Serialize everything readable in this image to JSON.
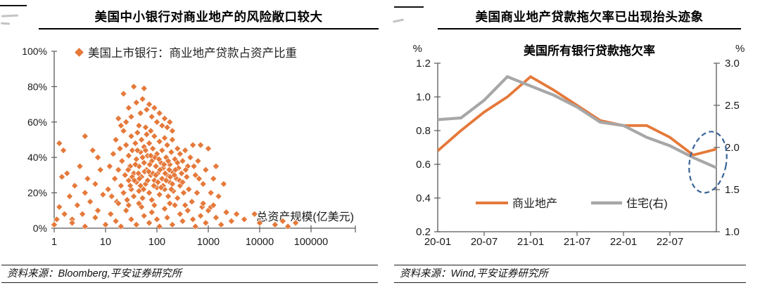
{
  "left_panel": {
    "title": "美国中小银行对商业地产的风险敞口较大",
    "source": "资料来源：Bloomberg,平安证券研究所"
  },
  "right_panel": {
    "title": "美国商业地产贷款拖欠率已出现抬头迹象",
    "source": "资料来源：Wind,平安证券研究所"
  },
  "colors": {
    "accent_orange": "#E5793A",
    "gray_series": "#A7A7A7",
    "annotation_blue": "#3A6496",
    "axis": "#595959"
  },
  "chart_data": [
    {
      "type": "scatter",
      "title": "美国中小银行对商业地产的风险敞口较大",
      "legend": "美国上市银行：商业地产贷款占资产比重",
      "xlabel": "总资产规模(亿美元)",
      "x_scale": "log",
      "x_ticks": [
        1,
        10,
        100,
        1000,
        10000,
        100000
      ],
      "y_ticks": [
        {
          "v": 100,
          "label": "100%"
        },
        {
          "v": 80,
          "label": "80%"
        },
        {
          "v": 60,
          "label": "60%"
        },
        {
          "v": 40,
          "label": "40%"
        },
        {
          "v": 20,
          "label": "20%"
        },
        {
          "v": 0,
          "label": "0%"
        }
      ],
      "ylim": [
        0,
        100
      ],
      "marker_color": "#E5793A",
      "points_log10x_ypct": [
        [
          1.05,
          22
        ],
        [
          1.08,
          35
        ],
        [
          1.12,
          18
        ],
        [
          1.15,
          42
        ],
        [
          1.18,
          28
        ],
        [
          1.2,
          50
        ],
        [
          1.22,
          15
        ],
        [
          1.25,
          33
        ],
        [
          1.28,
          45
        ],
        [
          1.3,
          24
        ],
        [
          1.32,
          38
        ],
        [
          1.35,
          55
        ],
        [
          1.35,
          20
        ],
        [
          1.38,
          30
        ],
        [
          1.4,
          47
        ],
        [
          1.42,
          16
        ],
        [
          1.45,
          41
        ],
        [
          1.45,
          27
        ],
        [
          1.48,
          35
        ],
        [
          1.5,
          52
        ],
        [
          1.5,
          22
        ],
        [
          1.52,
          44
        ],
        [
          1.55,
          31
        ],
        [
          1.55,
          18
        ],
        [
          1.58,
          48
        ],
        [
          1.6,
          26
        ],
        [
          1.6,
          39
        ],
        [
          1.62,
          54
        ],
        [
          1.65,
          21
        ],
        [
          1.65,
          35
        ],
        [
          1.68,
          43
        ],
        [
          1.7,
          29
        ],
        [
          1.7,
          50
        ],
        [
          1.72,
          17
        ],
        [
          1.75,
          37
        ],
        [
          1.75,
          46
        ],
        [
          1.78,
          25
        ],
        [
          1.8,
          33
        ],
        [
          1.8,
          53
        ],
        [
          1.82,
          41
        ],
        [
          1.85,
          20
        ],
        [
          1.85,
          48
        ],
        [
          1.88,
          30
        ],
        [
          1.9,
          38
        ],
        [
          1.9,
          16
        ],
        [
          1.92,
          45
        ],
        [
          1.95,
          27
        ],
        [
          1.95,
          52
        ],
        [
          1.98,
          35
        ],
        [
          2.0,
          23
        ],
        [
          2.0,
          42
        ],
        [
          2.02,
          31
        ],
        [
          2.05,
          49
        ],
        [
          2.05,
          19
        ],
        [
          2.08,
          37
        ],
        [
          2.1,
          28
        ],
        [
          2.1,
          44
        ],
        [
          2.12,
          34
        ],
        [
          2.15,
          51
        ],
        [
          2.15,
          22
        ],
        [
          2.18,
          40
        ],
        [
          2.2,
          30
        ],
        [
          2.2,
          47
        ],
        [
          2.22,
          18
        ],
        [
          2.25,
          36
        ],
        [
          2.25,
          26
        ],
        [
          2.28,
          43
        ],
        [
          2.3,
          32
        ],
        [
          2.3,
          50
        ],
        [
          2.32,
          21
        ],
        [
          2.35,
          39
        ],
        [
          2.38,
          28
        ],
        [
          2.4,
          45
        ],
        [
          2.4,
          17
        ],
        [
          2.42,
          34
        ],
        [
          2.45,
          42
        ],
        [
          2.45,
          24
        ],
        [
          2.48,
          31
        ],
        [
          2.5,
          38
        ],
        [
          2.52,
          20
        ],
        [
          2.55,
          44
        ],
        [
          2.58,
          29
        ],
        [
          2.6,
          35
        ],
        [
          1.44,
          33
        ],
        [
          1.52,
          29
        ],
        [
          1.58,
          36
        ],
        [
          1.64,
          31
        ],
        [
          1.68,
          24
        ],
        [
          1.72,
          40
        ],
        [
          1.76,
          32
        ],
        [
          1.82,
          27
        ],
        [
          1.86,
          36
        ],
        [
          1.92,
          31
        ],
        [
          1.96,
          40
        ],
        [
          2.02,
          26
        ],
        [
          2.06,
          33
        ],
        [
          2.12,
          24
        ],
        [
          2.16,
          31
        ],
        [
          2.22,
          38
        ],
        [
          2.26,
          29
        ],
        [
          2.3,
          25
        ],
        [
          2.36,
          33
        ],
        [
          2.44,
          27
        ],
        [
          1.48,
          24
        ],
        [
          1.56,
          27
        ],
        [
          1.62,
          44
        ],
        [
          1.66,
          28
        ],
        [
          1.74,
          22
        ],
        [
          1.78,
          44
        ],
        [
          1.84,
          32
        ],
        [
          1.88,
          41
        ],
        [
          1.94,
          24
        ],
        [
          1.98,
          30
        ],
        [
          2.04,
          39
        ],
        [
          2.08,
          23
        ],
        [
          2.14,
          36
        ],
        [
          2.18,
          27
        ],
        [
          2.24,
          33
        ],
        [
          2.28,
          22
        ],
        [
          2.34,
          30
        ],
        [
          2.4,
          37
        ],
        [
          2.5,
          26
        ],
        [
          2.56,
          33
        ],
        [
          1.35,
          76
        ],
        [
          1.55,
          80
        ],
        [
          1.75,
          79
        ],
        [
          1.45,
          68
        ],
        [
          1.6,
          71
        ],
        [
          1.68,
          65
        ],
        [
          1.72,
          73
        ],
        [
          1.8,
          67
        ],
        [
          1.85,
          70
        ],
        [
          1.9,
          63
        ],
        [
          1.95,
          68
        ],
        [
          2.0,
          60
        ],
        [
          2.05,
          65
        ],
        [
          2.1,
          58
        ],
        [
          2.15,
          62
        ],
        [
          1.5,
          63
        ],
        [
          1.4,
          60
        ],
        [
          1.3,
          58
        ],
        [
          1.25,
          62
        ],
        [
          2.2,
          57
        ],
        [
          2.3,
          55
        ],
        [
          1.65,
          58
        ],
        [
          1.78,
          57
        ],
        [
          1.88,
          55
        ],
        [
          2.25,
          60
        ],
        [
          0.0,
          2
        ],
        [
          0.05,
          5
        ],
        [
          0.1,
          12
        ],
        [
          0.15,
          29
        ],
        [
          0.2,
          8
        ],
        [
          0.25,
          31
        ],
        [
          0.3,
          18
        ],
        [
          0.35,
          5
        ],
        [
          0.4,
          24
        ],
        [
          0.45,
          13
        ],
        [
          0.5,
          35
        ],
        [
          0.55,
          8
        ],
        [
          0.6,
          20
        ],
        [
          0.65,
          28
        ],
        [
          0.7,
          15
        ],
        [
          0.75,
          44
        ],
        [
          0.8,
          25
        ],
        [
          0.85,
          10
        ],
        [
          0.9,
          33
        ],
        [
          0.95,
          19
        ],
        [
          0.1,
          48
        ],
        [
          0.18,
          44
        ],
        [
          0.6,
          52
        ],
        [
          0.85,
          40
        ],
        [
          2.65,
          40
        ],
        [
          2.7,
          47
        ],
        [
          2.75,
          30
        ],
        [
          2.8,
          38
        ],
        [
          2.85,
          47
        ],
        [
          2.9,
          25
        ],
        [
          2.95,
          33
        ],
        [
          3.0,
          45
        ],
        [
          3.05,
          20
        ],
        [
          3.1,
          28
        ],
        [
          3.15,
          35
        ],
        [
          2.62,
          22
        ],
        [
          2.68,
          15
        ],
        [
          2.78,
          20
        ],
        [
          2.88,
          12
        ],
        [
          3.2,
          18
        ],
        [
          3.3,
          25
        ],
        [
          2.72,
          35
        ],
        [
          2.82,
          28
        ],
        [
          3.0,
          10
        ],
        [
          0.35,
          3
        ],
        [
          0.6,
          1
        ],
        [
          0.8,
          6
        ],
        [
          1.0,
          2
        ],
        [
          1.1,
          8
        ],
        [
          1.2,
          4
        ],
        [
          1.3,
          1
        ],
        [
          1.4,
          10
        ],
        [
          1.5,
          5
        ],
        [
          1.6,
          2
        ],
        [
          1.7,
          12
        ],
        [
          1.75,
          7
        ],
        [
          1.85,
          3
        ],
        [
          1.9,
          9
        ],
        [
          2.0,
          5
        ],
        [
          2.05,
          1
        ],
        [
          2.15,
          11
        ],
        [
          2.2,
          6
        ],
        [
          2.3,
          2
        ],
        [
          2.35,
          13
        ],
        [
          2.45,
          8
        ],
        [
          2.5,
          4
        ],
        [
          2.6,
          10
        ],
        [
          2.7,
          5
        ],
        [
          2.75,
          1
        ],
        [
          2.85,
          7
        ],
        [
          2.95,
          3
        ],
        [
          3.05,
          12
        ],
        [
          3.15,
          6
        ],
        [
          3.25,
          2
        ],
        [
          3.35,
          9
        ],
        [
          3.45,
          4
        ],
        [
          1.25,
          14
        ],
        [
          1.45,
          13
        ],
        [
          1.65,
          14
        ],
        [
          1.95,
          13
        ],
        [
          2.25,
          14
        ],
        [
          2.55,
          13
        ],
        [
          2.9,
          14
        ],
        [
          3.1,
          13
        ],
        [
          3.55,
          8
        ],
        [
          3.7,
          5
        ],
        [
          3.9,
          8
        ],
        [
          4.0,
          3
        ],
        [
          4.3,
          2
        ],
        [
          4.45,
          4
        ],
        [
          4.55,
          1
        ],
        [
          4.7,
          3
        ]
      ]
    },
    {
      "type": "line",
      "title": "美国所有银行贷款拖欠率",
      "x": [
        "20-01",
        "20-04",
        "20-07",
        "20-10",
        "21-01",
        "21-04",
        "21-07",
        "21-10",
        "22-01",
        "22-04",
        "22-07",
        "22-10",
        "23-01"
      ],
      "x_tick_labels": [
        "20-01",
        "20-07",
        "21-01",
        "21-07",
        "22-01",
        "22-07"
      ],
      "left_axis": {
        "unit": "%",
        "min": 0.2,
        "max": 1.2,
        "ticks": [
          1.2,
          1.0,
          0.8,
          0.6,
          0.4,
          0.2
        ]
      },
      "right_axis": {
        "unit": "%",
        "min": 1.0,
        "max": 3.0,
        "ticks": [
          3.0,
          2.5,
          2.0,
          1.5,
          1.0
        ]
      },
      "series": [
        {
          "name": "商业地产",
          "axis": "left",
          "color": "#E5793A",
          "values": [
            0.68,
            0.8,
            0.91,
            1.0,
            1.12,
            1.04,
            0.95,
            0.86,
            0.83,
            0.83,
            0.76,
            0.655,
            0.69
          ]
        },
        {
          "name": "住宅(右)",
          "axis": "right",
          "color": "#A7A7A7",
          "values": [
            2.33,
            2.35,
            2.56,
            2.84,
            2.73,
            2.62,
            2.48,
            2.3,
            2.26,
            2.12,
            2.02,
            1.88,
            1.76
          ]
        }
      ],
      "annotation": {
        "shape": "dashed-ellipse",
        "meaning": "末端抬头迹象",
        "color": "#3A6496"
      }
    }
  ]
}
